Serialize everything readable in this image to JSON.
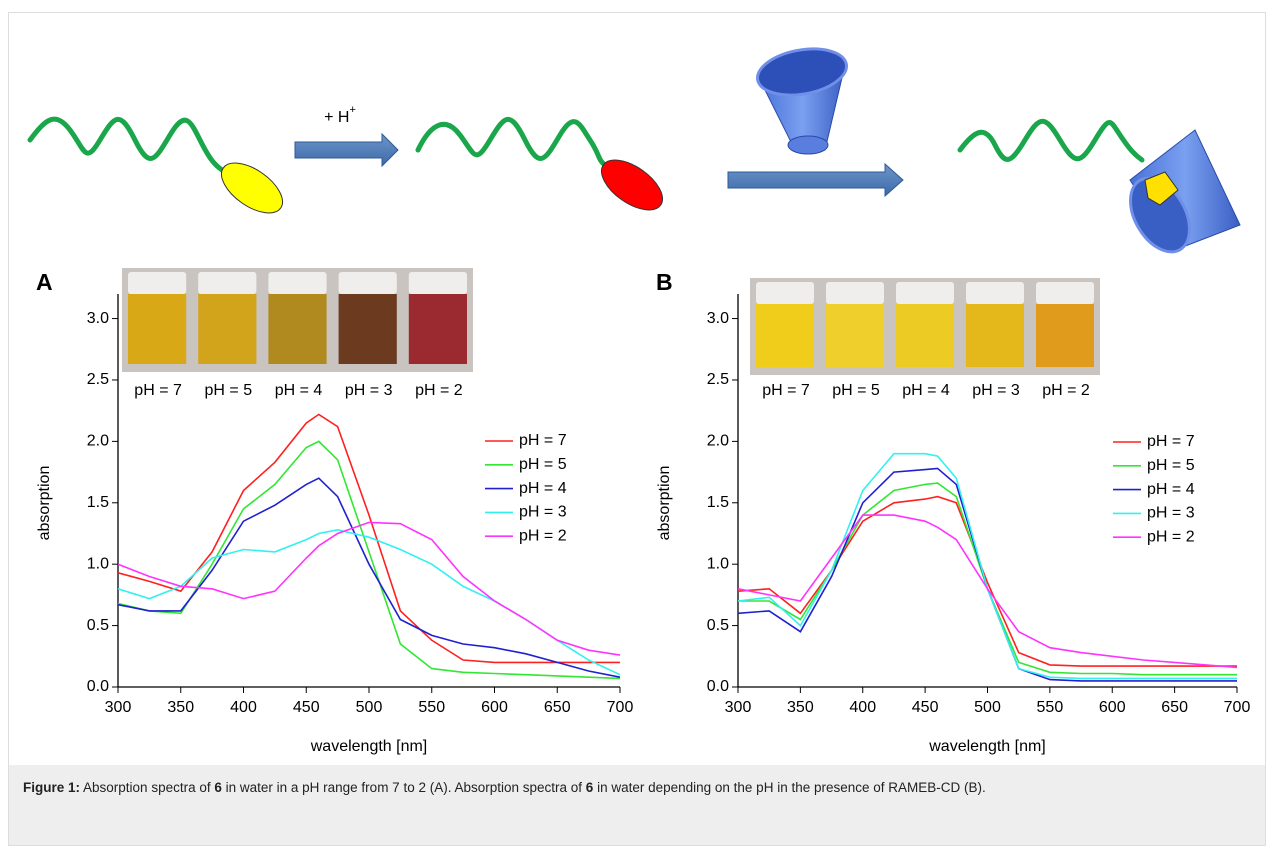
{
  "scheme": {
    "reagent": {
      "text": "+ H",
      "superscript": "+"
    }
  },
  "chart_data": [
    {
      "type": "line",
      "panel": "A",
      "xlabel": "wavelength [nm]",
      "ylabel": "absorption",
      "x": [
        300,
        325,
        350,
        375,
        400,
        425,
        450,
        460,
        475,
        500,
        525,
        550,
        575,
        600,
        625,
        650,
        675,
        700
      ],
      "xlim": [
        300,
        700
      ],
      "ylim": [
        0,
        3.2
      ],
      "xticks": [
        300,
        350,
        400,
        450,
        500,
        550,
        600,
        650,
        700
      ],
      "yticks": [
        {
          "value": 0,
          "label": "0.0"
        },
        0.5,
        {
          "value": 1,
          "label": "1.0"
        },
        1.5,
        {
          "value": 2,
          "label": "2.0"
        },
        2.5,
        {
          "value": 3,
          "label": "3.0"
        }
      ],
      "inset_labels": [
        "pH = 7",
        "pH = 5",
        "pH = 4",
        "pH = 3",
        "pH = 2"
      ],
      "inset_colors": [
        "#d9a817",
        "#d1a41c",
        "#b08a1e",
        "#6b3a1f",
        "#9a2a30"
      ],
      "series": [
        {
          "name": "pH = 7",
          "color": "#ff2020",
          "values": [
            0.93,
            0.86,
            0.78,
            1.1,
            1.6,
            1.83,
            2.15,
            2.22,
            2.12,
            1.4,
            0.62,
            0.38,
            0.22,
            0.2,
            0.2,
            0.2,
            0.2,
            0.2
          ]
        },
        {
          "name": "pH = 5",
          "color": "#33e633",
          "values": [
            0.68,
            0.62,
            0.6,
            1.0,
            1.45,
            1.65,
            1.95,
            2.0,
            1.85,
            1.1,
            0.35,
            0.15,
            0.12,
            0.11,
            0.1,
            0.09,
            0.08,
            0.07
          ]
        },
        {
          "name": "pH = 4",
          "color": "#2020d0",
          "values": [
            0.67,
            0.62,
            0.62,
            0.95,
            1.35,
            1.48,
            1.65,
            1.7,
            1.55,
            1.0,
            0.55,
            0.42,
            0.35,
            0.32,
            0.27,
            0.2,
            0.13,
            0.08
          ]
        },
        {
          "name": "pH = 3",
          "color": "#33f0f0",
          "values": [
            0.8,
            0.72,
            0.82,
            1.05,
            1.12,
            1.1,
            1.2,
            1.25,
            1.28,
            1.22,
            1.12,
            1.0,
            0.82,
            0.7,
            0.55,
            0.38,
            0.22,
            0.1
          ]
        },
        {
          "name": "pH = 2",
          "color": "#ff33ff",
          "values": [
            1.0,
            0.9,
            0.82,
            0.8,
            0.72,
            0.78,
            1.05,
            1.15,
            1.25,
            1.34,
            1.33,
            1.2,
            0.9,
            0.7,
            0.55,
            0.38,
            0.3,
            0.26
          ]
        }
      ]
    },
    {
      "type": "line",
      "panel": "B",
      "xlabel": "wavelength [nm]",
      "ylabel": "absorption",
      "x": [
        300,
        325,
        350,
        375,
        400,
        425,
        450,
        460,
        475,
        500,
        525,
        550,
        575,
        600,
        625,
        650,
        675,
        700
      ],
      "xlim": [
        300,
        700
      ],
      "ylim": [
        0,
        3.2
      ],
      "xticks": [
        300,
        350,
        400,
        450,
        500,
        550,
        600,
        650,
        700
      ],
      "yticks": [
        {
          "value": 0,
          "label": "0.0"
        },
        0.5,
        {
          "value": 1,
          "label": "1.0"
        },
        1.5,
        {
          "value": 2,
          "label": "2.0"
        },
        2.5,
        {
          "value": 3,
          "label": "3.0"
        }
      ],
      "inset_labels": [
        "pH = 7",
        "pH = 5",
        "pH = 4",
        "pH = 3",
        "pH = 2"
      ],
      "inset_colors": [
        "#f0cd1a",
        "#efcf2c",
        "#eccb24",
        "#e4b81a",
        "#e09a1c"
      ],
      "series": [
        {
          "name": "pH = 7",
          "color": "#ff2020",
          "values": [
            0.78,
            0.8,
            0.6,
            0.95,
            1.35,
            1.5,
            1.53,
            1.55,
            1.5,
            0.85,
            0.28,
            0.18,
            0.17,
            0.17,
            0.17,
            0.17,
            0.17,
            0.17
          ]
        },
        {
          "name": "pH = 5",
          "color": "#33e633",
          "values": [
            0.7,
            0.7,
            0.55,
            0.95,
            1.4,
            1.6,
            1.65,
            1.66,
            1.55,
            0.8,
            0.2,
            0.12,
            0.11,
            0.11,
            0.1,
            0.1,
            0.1,
            0.1
          ]
        },
        {
          "name": "pH = 4",
          "color": "#2020d0",
          "values": [
            0.6,
            0.62,
            0.45,
            0.9,
            1.5,
            1.75,
            1.77,
            1.78,
            1.65,
            0.8,
            0.15,
            0.06,
            0.05,
            0.05,
            0.05,
            0.05,
            0.05,
            0.05
          ]
        },
        {
          "name": "pH = 3",
          "color": "#33f0f0",
          "values": [
            0.7,
            0.73,
            0.5,
            0.95,
            1.6,
            1.9,
            1.9,
            1.88,
            1.7,
            0.8,
            0.15,
            0.08,
            0.07,
            0.07,
            0.07,
            0.07,
            0.07,
            0.07
          ]
        },
        {
          "name": "pH = 2",
          "color": "#ff33ff",
          "values": [
            0.8,
            0.75,
            0.7,
            1.05,
            1.4,
            1.4,
            1.35,
            1.3,
            1.2,
            0.8,
            0.45,
            0.32,
            0.28,
            0.25,
            0.22,
            0.2,
            0.18,
            0.16
          ]
        }
      ]
    }
  ],
  "caption": [
    {
      "text": "Figure 1:",
      "bold": true
    },
    {
      "text": " Absorption spectra of ",
      "bold": false
    },
    {
      "text": "6",
      "bold": true
    },
    {
      "text": " in water in a pH range from 7 to 2 (A). Absorption spectra of ",
      "bold": false
    },
    {
      "text": "6",
      "bold": true
    },
    {
      "text": " in water depending on the pH in the presence of RAMEB-CD (B).",
      "bold": false
    }
  ]
}
